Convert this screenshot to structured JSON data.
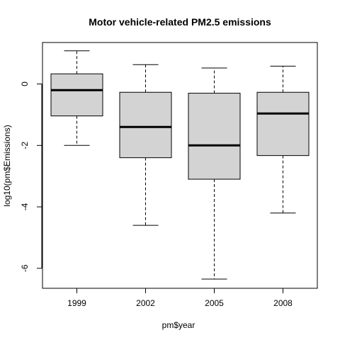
{
  "chart_data": {
    "type": "boxplot",
    "title": "Motor vehicle-related PM2.5 emissions",
    "xlabel": "pm$year",
    "ylabel": "log10(pm$Emissions)",
    "ylim": [
      -6.65,
      1.35
    ],
    "yticks": [
      0,
      -2,
      -4,
      -6
    ],
    "categories": [
      "1999",
      "2002",
      "2005",
      "2008"
    ],
    "boxes": [
      {
        "category": "1999",
        "whisker_low": -2.0,
        "q1": -1.04,
        "median": -0.2,
        "q3": 0.33,
        "whisker_high": 1.08
      },
      {
        "category": "2002",
        "whisker_low": -4.6,
        "q1": -2.4,
        "median": -1.4,
        "q3": -0.27,
        "whisker_high": 0.63
      },
      {
        "category": "2005",
        "whisker_low": -6.35,
        "q1": -3.1,
        "median": -2.0,
        "q3": -0.3,
        "whisker_high": 0.52
      },
      {
        "category": "2008",
        "whisker_low": -4.2,
        "q1": -2.33,
        "median": -0.96,
        "q3": -0.27,
        "whisker_high": 0.58
      }
    ],
    "box_fill": "#d3d3d3",
    "line_color": "#000000",
    "grid": false,
    "legend": "none"
  }
}
